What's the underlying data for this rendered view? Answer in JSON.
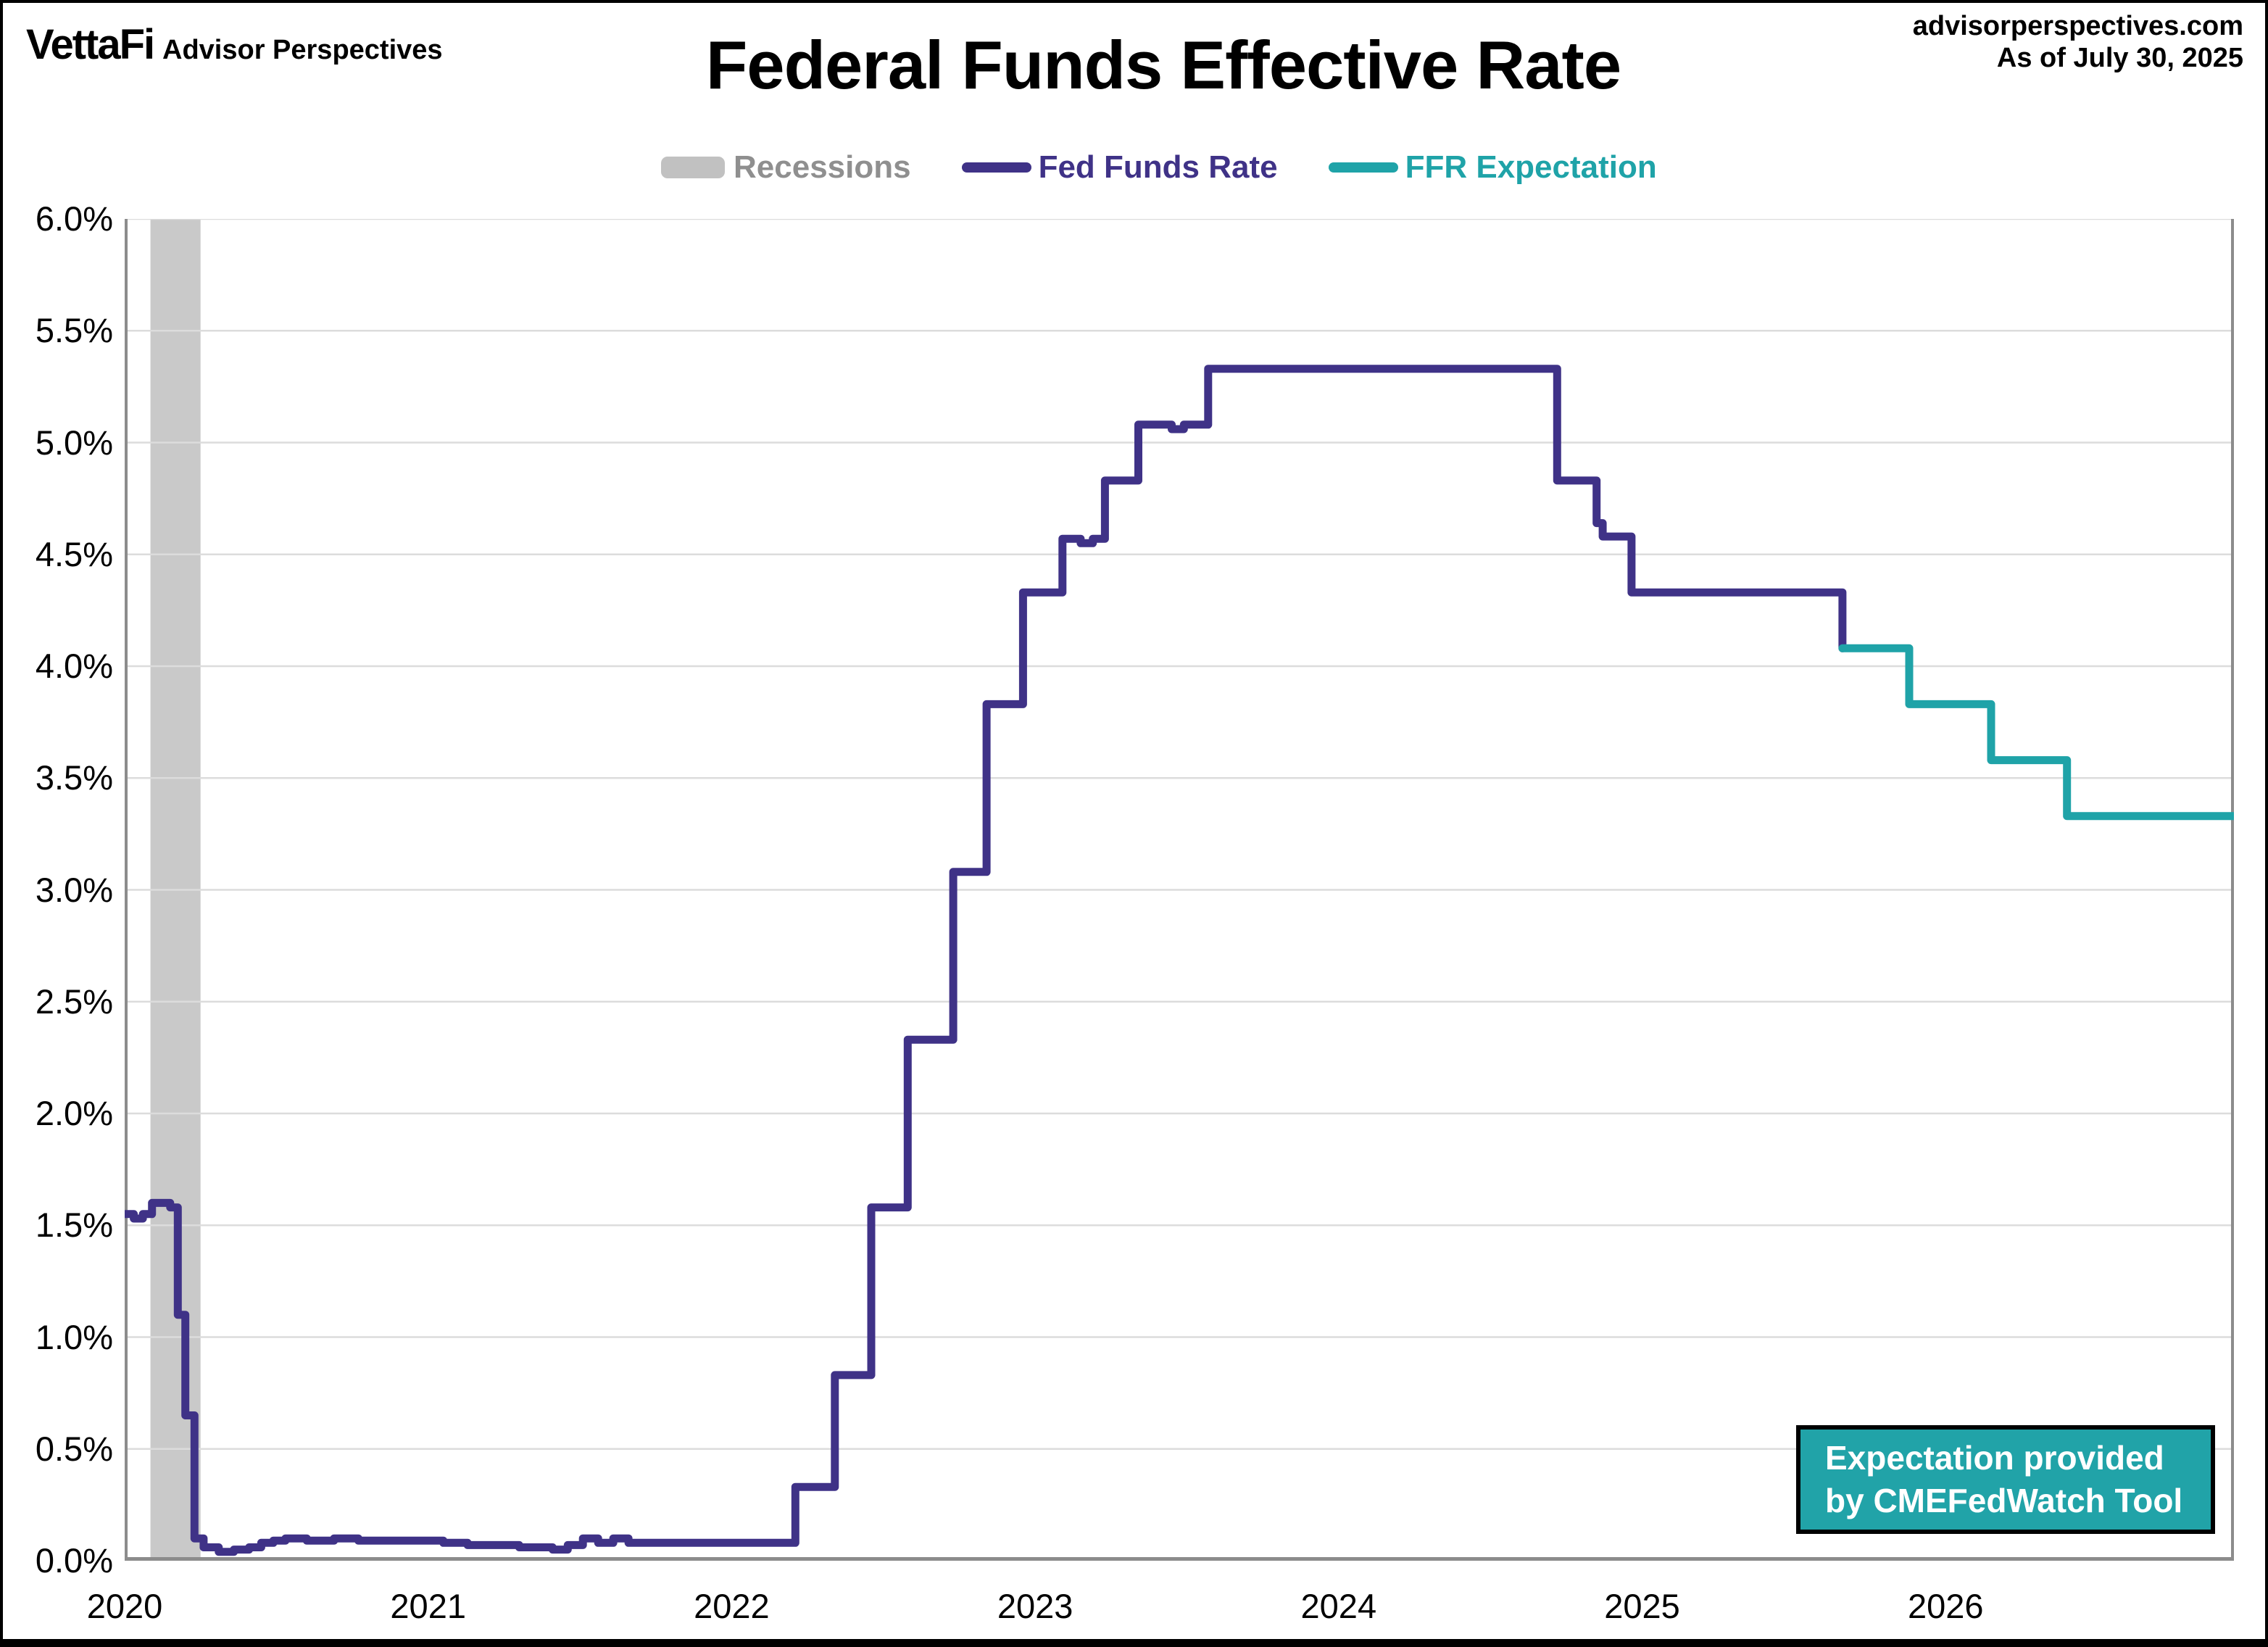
{
  "header": {
    "logo": "VettaFi",
    "brand": "Advisor Perspectives",
    "title": "Federal Funds Effective Rate",
    "website": "advisorperspectives.com",
    "as_of": "As of July 30, 2025"
  },
  "legend": {
    "recessions": "Recessions",
    "fed_funds": "Fed Funds Rate",
    "expectation": "FFR Expectation"
  },
  "note_box": {
    "line1": "Expectation provided",
    "line2": "by CMEFedWatch Tool"
  },
  "colors": {
    "fed_funds_line": "#3F3287",
    "expectation_line": "#1FA3A8",
    "recession_band": "#C9C9C9",
    "legend_gray_text": "#8F8F8F",
    "legend_gray_swatch": "#C1C1C1",
    "gridline": "#DCDCDC",
    "axis": "#8C8C8C",
    "note_box_bg": "#21A3A8"
  },
  "chart_data": {
    "type": "line",
    "title": "Federal Funds Effective Rate",
    "xlabel": "",
    "ylabel": "",
    "x_range": [
      2020,
      2026.95
    ],
    "y_range": [
      0,
      6
    ],
    "grid": true,
    "legend_position": "top",
    "x_ticks": [
      {
        "value": 2020,
        "label": "2020"
      },
      {
        "value": 2021,
        "label": "2021"
      },
      {
        "value": 2022,
        "label": "2022"
      },
      {
        "value": 2023,
        "label": "2023"
      },
      {
        "value": 2024,
        "label": "2024"
      },
      {
        "value": 2025,
        "label": "2025"
      },
      {
        "value": 2026,
        "label": "2026"
      }
    ],
    "y_ticks": [
      {
        "value": 0.0,
        "label": "0.0%"
      },
      {
        "value": 0.5,
        "label": "0.5%"
      },
      {
        "value": 1.0,
        "label": "1.0%"
      },
      {
        "value": 1.5,
        "label": "1.5%"
      },
      {
        "value": 2.0,
        "label": "2.0%"
      },
      {
        "value": 2.5,
        "label": "2.5%"
      },
      {
        "value": 3.0,
        "label": "3.0%"
      },
      {
        "value": 3.5,
        "label": "3.5%"
      },
      {
        "value": 4.0,
        "label": "4.0%"
      },
      {
        "value": 4.5,
        "label": "4.5%"
      },
      {
        "value": 5.0,
        "label": "5.0%"
      },
      {
        "value": 5.5,
        "label": "5.5%"
      },
      {
        "value": 6.0,
        "label": "6.0%"
      }
    ],
    "recessions": [
      {
        "start": 2020.085,
        "end": 2020.25
      }
    ],
    "series": [
      {
        "name": "Fed Funds Rate",
        "mode": "step-after",
        "color_key": "fed_funds_line",
        "end": 2025.66,
        "points": [
          [
            2020.0,
            1.55
          ],
          [
            2020.03,
            1.53
          ],
          [
            2020.06,
            1.55
          ],
          [
            2020.09,
            1.6
          ],
          [
            2020.15,
            1.58
          ],
          [
            2020.175,
            1.1
          ],
          [
            2020.2,
            0.65
          ],
          [
            2020.23,
            0.1
          ],
          [
            2020.26,
            0.06
          ],
          [
            2020.31,
            0.04
          ],
          [
            2020.36,
            0.05
          ],
          [
            2020.41,
            0.06
          ],
          [
            2020.45,
            0.08
          ],
          [
            2020.49,
            0.09
          ],
          [
            2020.53,
            0.1
          ],
          [
            2020.6,
            0.09
          ],
          [
            2020.69,
            0.1
          ],
          [
            2020.77,
            0.09
          ],
          [
            2021.05,
            0.08
          ],
          [
            2021.13,
            0.07
          ],
          [
            2021.3,
            0.06
          ],
          [
            2021.41,
            0.05
          ],
          [
            2021.46,
            0.07
          ],
          [
            2021.51,
            0.1
          ],
          [
            2021.56,
            0.08
          ],
          [
            2021.61,
            0.1
          ],
          [
            2021.66,
            0.08
          ],
          [
            2022.21,
            0.33
          ],
          [
            2022.34,
            0.83
          ],
          [
            2022.46,
            1.58
          ],
          [
            2022.58,
            2.33
          ],
          [
            2022.73,
            3.08
          ],
          [
            2022.84,
            3.83
          ],
          [
            2022.96,
            4.33
          ],
          [
            2023.09,
            4.57
          ],
          [
            2023.15,
            4.55
          ],
          [
            2023.19,
            4.57
          ],
          [
            2023.23,
            4.83
          ],
          [
            2023.34,
            5.08
          ],
          [
            2023.45,
            5.06
          ],
          [
            2023.49,
            5.08
          ],
          [
            2023.57,
            5.33
          ],
          [
            2024.72,
            4.83
          ],
          [
            2024.85,
            4.64
          ],
          [
            2024.87,
            4.58
          ],
          [
            2024.965,
            4.33
          ],
          [
            2025.66,
            4.08
          ]
        ]
      },
      {
        "name": "FFR Expectation",
        "mode": "step-after",
        "color_key": "expectation_line",
        "end": 2026.95,
        "points": [
          [
            2025.66,
            4.08
          ],
          [
            2025.88,
            3.83
          ],
          [
            2026.15,
            3.58
          ],
          [
            2026.4,
            3.33
          ]
        ]
      }
    ]
  }
}
